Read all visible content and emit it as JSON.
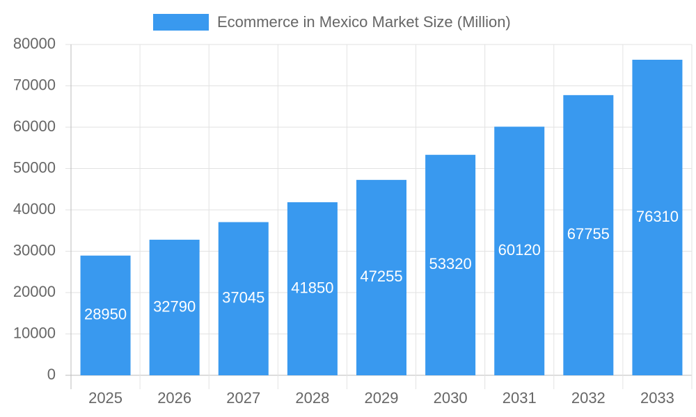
{
  "chart_data": {
    "type": "bar",
    "categories": [
      "2025",
      "2026",
      "2027",
      "2028",
      "2029",
      "2030",
      "2031",
      "2032",
      "2033"
    ],
    "series": [
      {
        "name": "Ecommerce in Mexico Market Size (Million)",
        "color": "#3999ef",
        "values": [
          28950,
          32790,
          37045,
          41850,
          47255,
          53320,
          60120,
          67755,
          76310
        ]
      }
    ],
    "ylim": [
      0,
      80000
    ],
    "yticks": [
      0,
      10000,
      20000,
      30000,
      40000,
      50000,
      60000,
      70000,
      80000
    ],
    "grid": true,
    "legend": "top",
    "data_labels": true
  }
}
